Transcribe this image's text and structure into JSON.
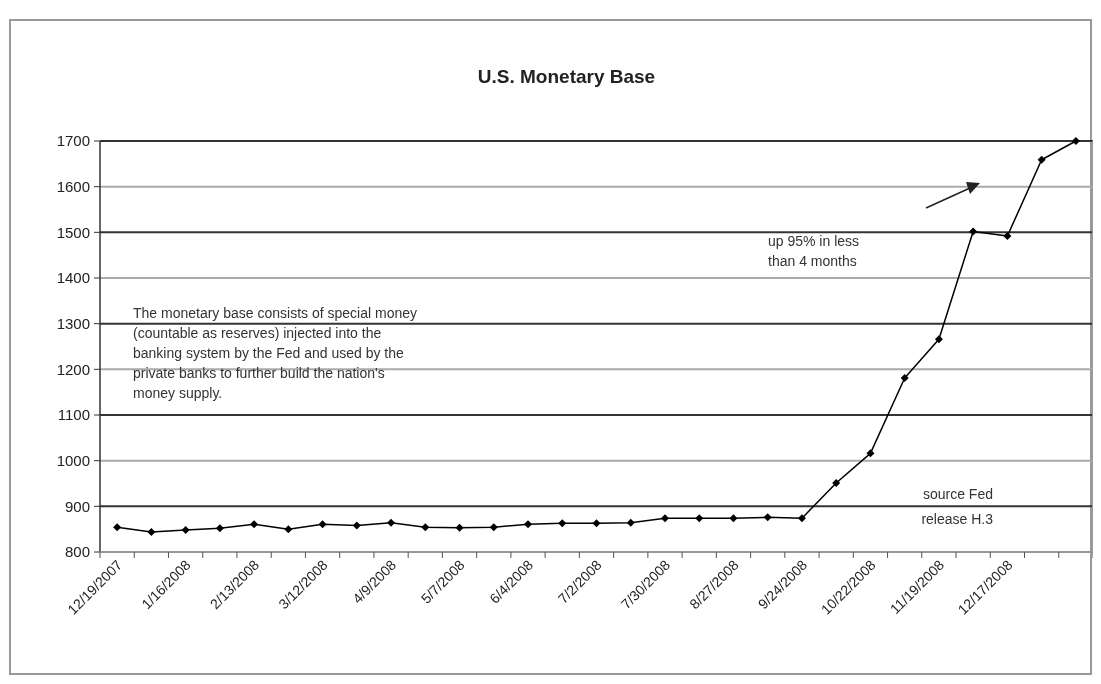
{
  "chart_data": {
    "type": "line",
    "title": "U.S. Monetary Base",
    "categories": [
      "12/19/2007",
      null,
      "1/16/2008",
      null,
      "2/13/2008",
      null,
      "3/12/2008",
      null,
      "4/9/2008",
      null,
      "5/7/2008",
      null,
      "6/4/2008",
      null,
      "7/2/2008",
      null,
      "7/30/2008",
      null,
      "8/27/2008",
      null,
      "9/24/2008",
      null,
      "10/22/2008",
      null,
      "11/19/2008",
      null,
      "12/17/2008",
      null,
      null
    ],
    "series": [
      {
        "color": "#000000",
        "values": [
          854,
          844,
          848,
          852,
          861,
          850,
          861,
          858,
          864,
          854,
          853,
          854,
          861,
          863,
          863,
          864,
          874,
          874,
          874,
          876,
          874,
          951,
          1016,
          1181,
          1266,
          1502,
          1492,
          1659,
          1700
        ]
      }
    ],
    "ylim": [
      800,
      1700
    ],
    "yticks": [
      800,
      900,
      1000,
      1100,
      1200,
      1300,
      1400,
      1500,
      1600,
      1700
    ],
    "grid": "y",
    "marker": "diamond",
    "line_style": "solid",
    "annotations": [
      "The monetary base consists of special money (countable as reserves) injected into the banking system by the Fed and used by the private banks to further build the nation's money supply.",
      "up 95% in less than 4 months",
      "source Fed release H.3"
    ]
  }
}
